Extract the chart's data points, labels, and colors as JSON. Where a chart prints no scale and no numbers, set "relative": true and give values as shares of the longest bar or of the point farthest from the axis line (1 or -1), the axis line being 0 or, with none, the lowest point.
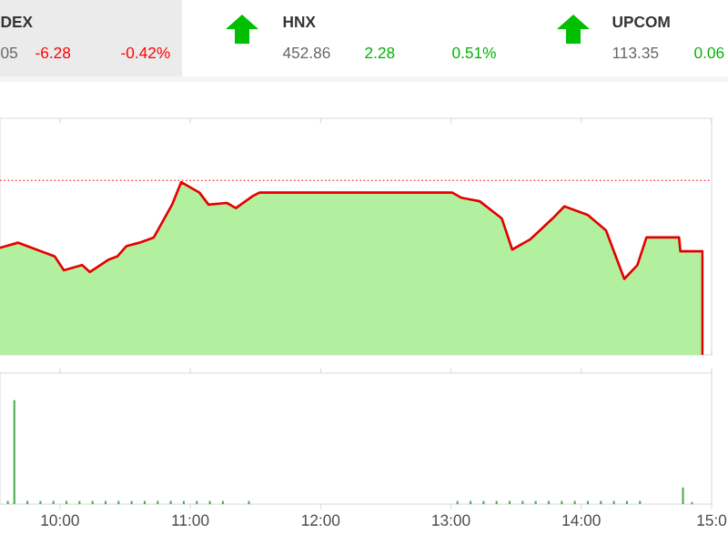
{
  "chart_data": [
    {
      "type": "other",
      "annotations": [
        "DEX",
        "05",
        "-6.28",
        "-0.42%",
        "HNX",
        "452.86",
        "2.28",
        "0.51%",
        "UPCOM",
        "113.35",
        "0.06"
      ]
    },
    {
      "type": "area",
      "relative": true,
      "color": "#b2f0a0",
      "tick_labels": false,
      "x": [
        9.54,
        9.68,
        9.82,
        9.96,
        10.03,
        10.17,
        10.23,
        10.37,
        10.44,
        10.51,
        10.61,
        10.72,
        10.86,
        10.93,
        11.07,
        11.14,
        11.28,
        11.35,
        11.48,
        11.53,
        13.01,
        13.08,
        13.22,
        13.39,
        13.47,
        13.61,
        13.78,
        13.87,
        14.05,
        14.19,
        14.26,
        14.33,
        14.43,
        14.5,
        14.75,
        14.76,
        14.93
      ],
      "values": [
        0.62,
        0.65,
        0.61,
        0.57,
        0.49,
        0.52,
        0.48,
        0.55,
        0.57,
        0.63,
        0.65,
        0.68,
        0.87,
        1.0,
        0.94,
        0.87,
        0.88,
        0.85,
        0.92,
        0.94,
        0.94,
        0.91,
        0.89,
        0.79,
        0.61,
        0.67,
        0.79,
        0.86,
        0.81,
        0.72,
        0.58,
        0.44,
        0.52,
        0.68,
        0.68,
        0.6,
        0.6
      ],
      "ref_lines": [
        {
          "axis": "y",
          "value": 1.01,
          "color": "#ff4040",
          "line_style": "dotted"
        }
      ],
      "xlim": [
        9.54,
        15
      ],
      "xticks": [
        {
          "value": 10,
          "label": null
        },
        {
          "value": 11,
          "label": null
        },
        {
          "value": 12,
          "label": null
        },
        {
          "value": 13,
          "label": null
        },
        {
          "value": 14,
          "label": null
        },
        {
          "value": 15,
          "label": null
        }
      ]
    },
    {
      "type": "bar",
      "relative": true,
      "color": "#4caf50",
      "tick_labels": "x",
      "x": [
        9.6,
        9.65,
        9.75,
        9.85,
        9.95,
        10.05,
        10.15,
        10.25,
        10.35,
        10.45,
        10.55,
        10.65,
        10.75,
        10.85,
        10.95,
        11.05,
        11.15,
        11.25,
        11.45,
        13.05,
        13.15,
        13.25,
        13.35,
        13.45,
        13.55,
        13.65,
        13.75,
        13.85,
        13.95,
        14.05,
        14.15,
        14.25,
        14.35,
        14.45,
        14.78,
        14.85
      ],
      "values": [
        0.03,
        1.0,
        0.03,
        0.03,
        0.03,
        0.03,
        0.03,
        0.03,
        0.03,
        0.03,
        0.03,
        0.03,
        0.03,
        0.03,
        0.03,
        0.03,
        0.03,
        0.03,
        0.03,
        0.03,
        0.03,
        0.03,
        0.03,
        0.03,
        0.03,
        0.03,
        0.03,
        0.03,
        0.03,
        0.03,
        0.03,
        0.03,
        0.03,
        0.03,
        0.16,
        0.02
      ],
      "xlim": [
        9.54,
        15
      ],
      "xticks": [
        {
          "value": 10,
          "label": "10:00"
        },
        {
          "value": 11,
          "label": "11:00"
        },
        {
          "value": 12,
          "label": "12:00"
        },
        {
          "value": 13,
          "label": "13:00"
        },
        {
          "value": 14,
          "label": "14:00"
        },
        {
          "value": 15,
          "label": "15:0"
        }
      ]
    }
  ]
}
